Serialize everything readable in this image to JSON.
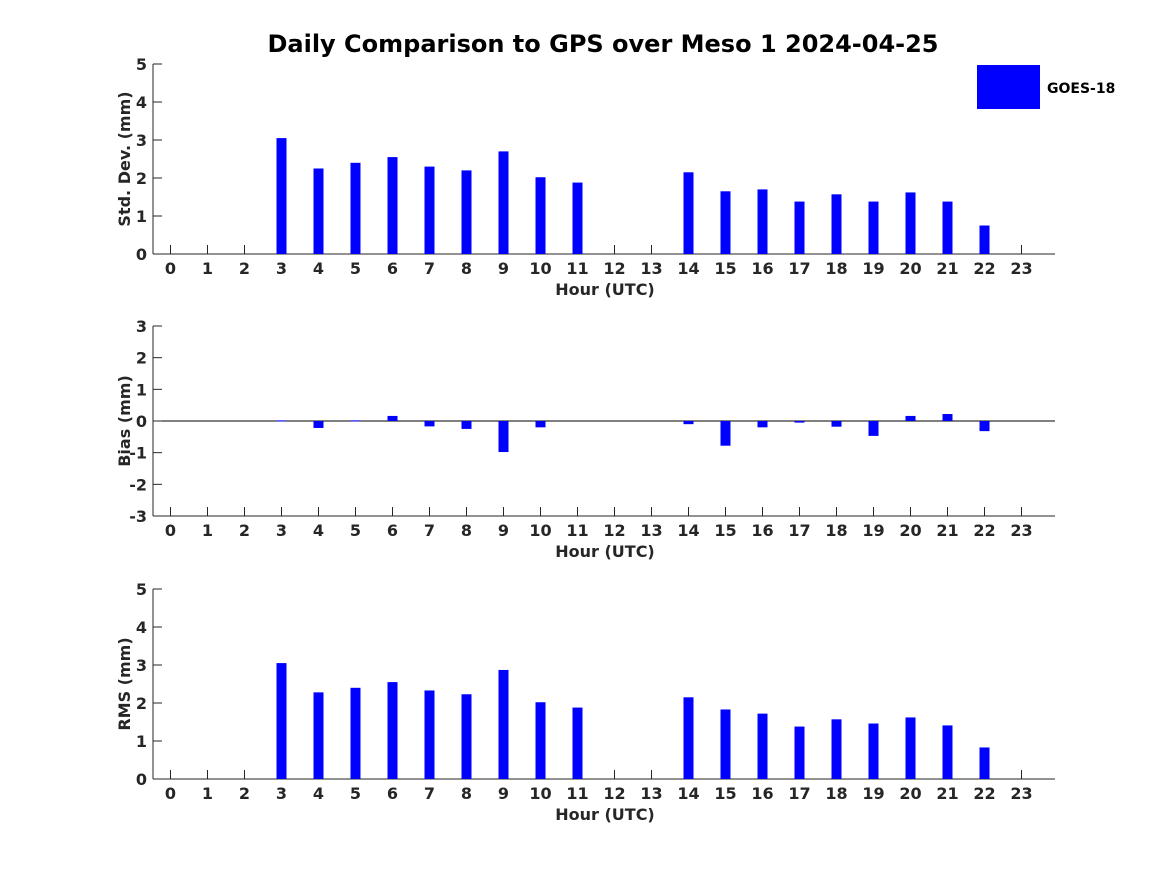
{
  "chart_data": [
    {
      "type": "bar",
      "title": "Daily Comparison to GPS over Meso 1 2024-04-25",
      "xlabel": "Hour (UTC)",
      "ylabel": "Std. Dev. (mm)",
      "ylim": [
        0,
        5
      ],
      "yticks": [
        0,
        1,
        2,
        3,
        4,
        5
      ],
      "categories": [
        "0",
        "1",
        "2",
        "3",
        "4",
        "5",
        "6",
        "7",
        "8",
        "9",
        "10",
        "11",
        "12",
        "13",
        "14",
        "15",
        "16",
        "17",
        "18",
        "19",
        "20",
        "21",
        "22",
        "23"
      ],
      "series": [
        {
          "name": "GOES-18",
          "color": "#0000ff",
          "values": [
            null,
            null,
            null,
            3.05,
            2.25,
            2.4,
            2.55,
            2.3,
            2.2,
            2.7,
            2.02,
            1.88,
            null,
            null,
            2.15,
            1.65,
            1.7,
            1.38,
            1.57,
            1.38,
            1.62,
            1.38,
            0.75,
            null
          ]
        }
      ]
    },
    {
      "type": "bar",
      "xlabel": "Hour (UTC)",
      "ylabel": "Bias (mm)",
      "ylim": [
        -3,
        3
      ],
      "yticks": [
        -3,
        -2,
        -1,
        0,
        1,
        2,
        3
      ],
      "categories": [
        "0",
        "1",
        "2",
        "3",
        "4",
        "5",
        "6",
        "7",
        "8",
        "9",
        "10",
        "11",
        "12",
        "13",
        "14",
        "15",
        "16",
        "17",
        "18",
        "19",
        "20",
        "21",
        "22",
        "23"
      ],
      "series": [
        {
          "name": "GOES-18",
          "color": "#0000ff",
          "values": [
            null,
            null,
            null,
            0.02,
            -0.22,
            0.02,
            0.16,
            -0.17,
            -0.25,
            -0.98,
            -0.2,
            null,
            null,
            null,
            -0.1,
            -0.78,
            -0.2,
            -0.05,
            -0.18,
            -0.47,
            0.16,
            0.22,
            -0.32,
            null
          ]
        }
      ]
    },
    {
      "type": "bar",
      "xlabel": "Hour (UTC)",
      "ylabel": "RMS (mm)",
      "ylim": [
        0,
        5
      ],
      "yticks": [
        0,
        1,
        2,
        3,
        4,
        5
      ],
      "categories": [
        "0",
        "1",
        "2",
        "3",
        "4",
        "5",
        "6",
        "7",
        "8",
        "9",
        "10",
        "11",
        "12",
        "13",
        "14",
        "15",
        "16",
        "17",
        "18",
        "19",
        "20",
        "21",
        "22",
        "23"
      ],
      "series": [
        {
          "name": "GOES-18",
          "color": "#0000ff",
          "values": [
            null,
            null,
            null,
            3.05,
            2.28,
            2.4,
            2.55,
            2.33,
            2.23,
            2.87,
            2.02,
            1.88,
            null,
            null,
            2.15,
            1.83,
            1.72,
            1.38,
            1.57,
            1.46,
            1.62,
            1.41,
            0.83,
            null
          ]
        }
      ]
    }
  ],
  "legend": {
    "label": "GOES-18",
    "color": "#0000ff"
  }
}
